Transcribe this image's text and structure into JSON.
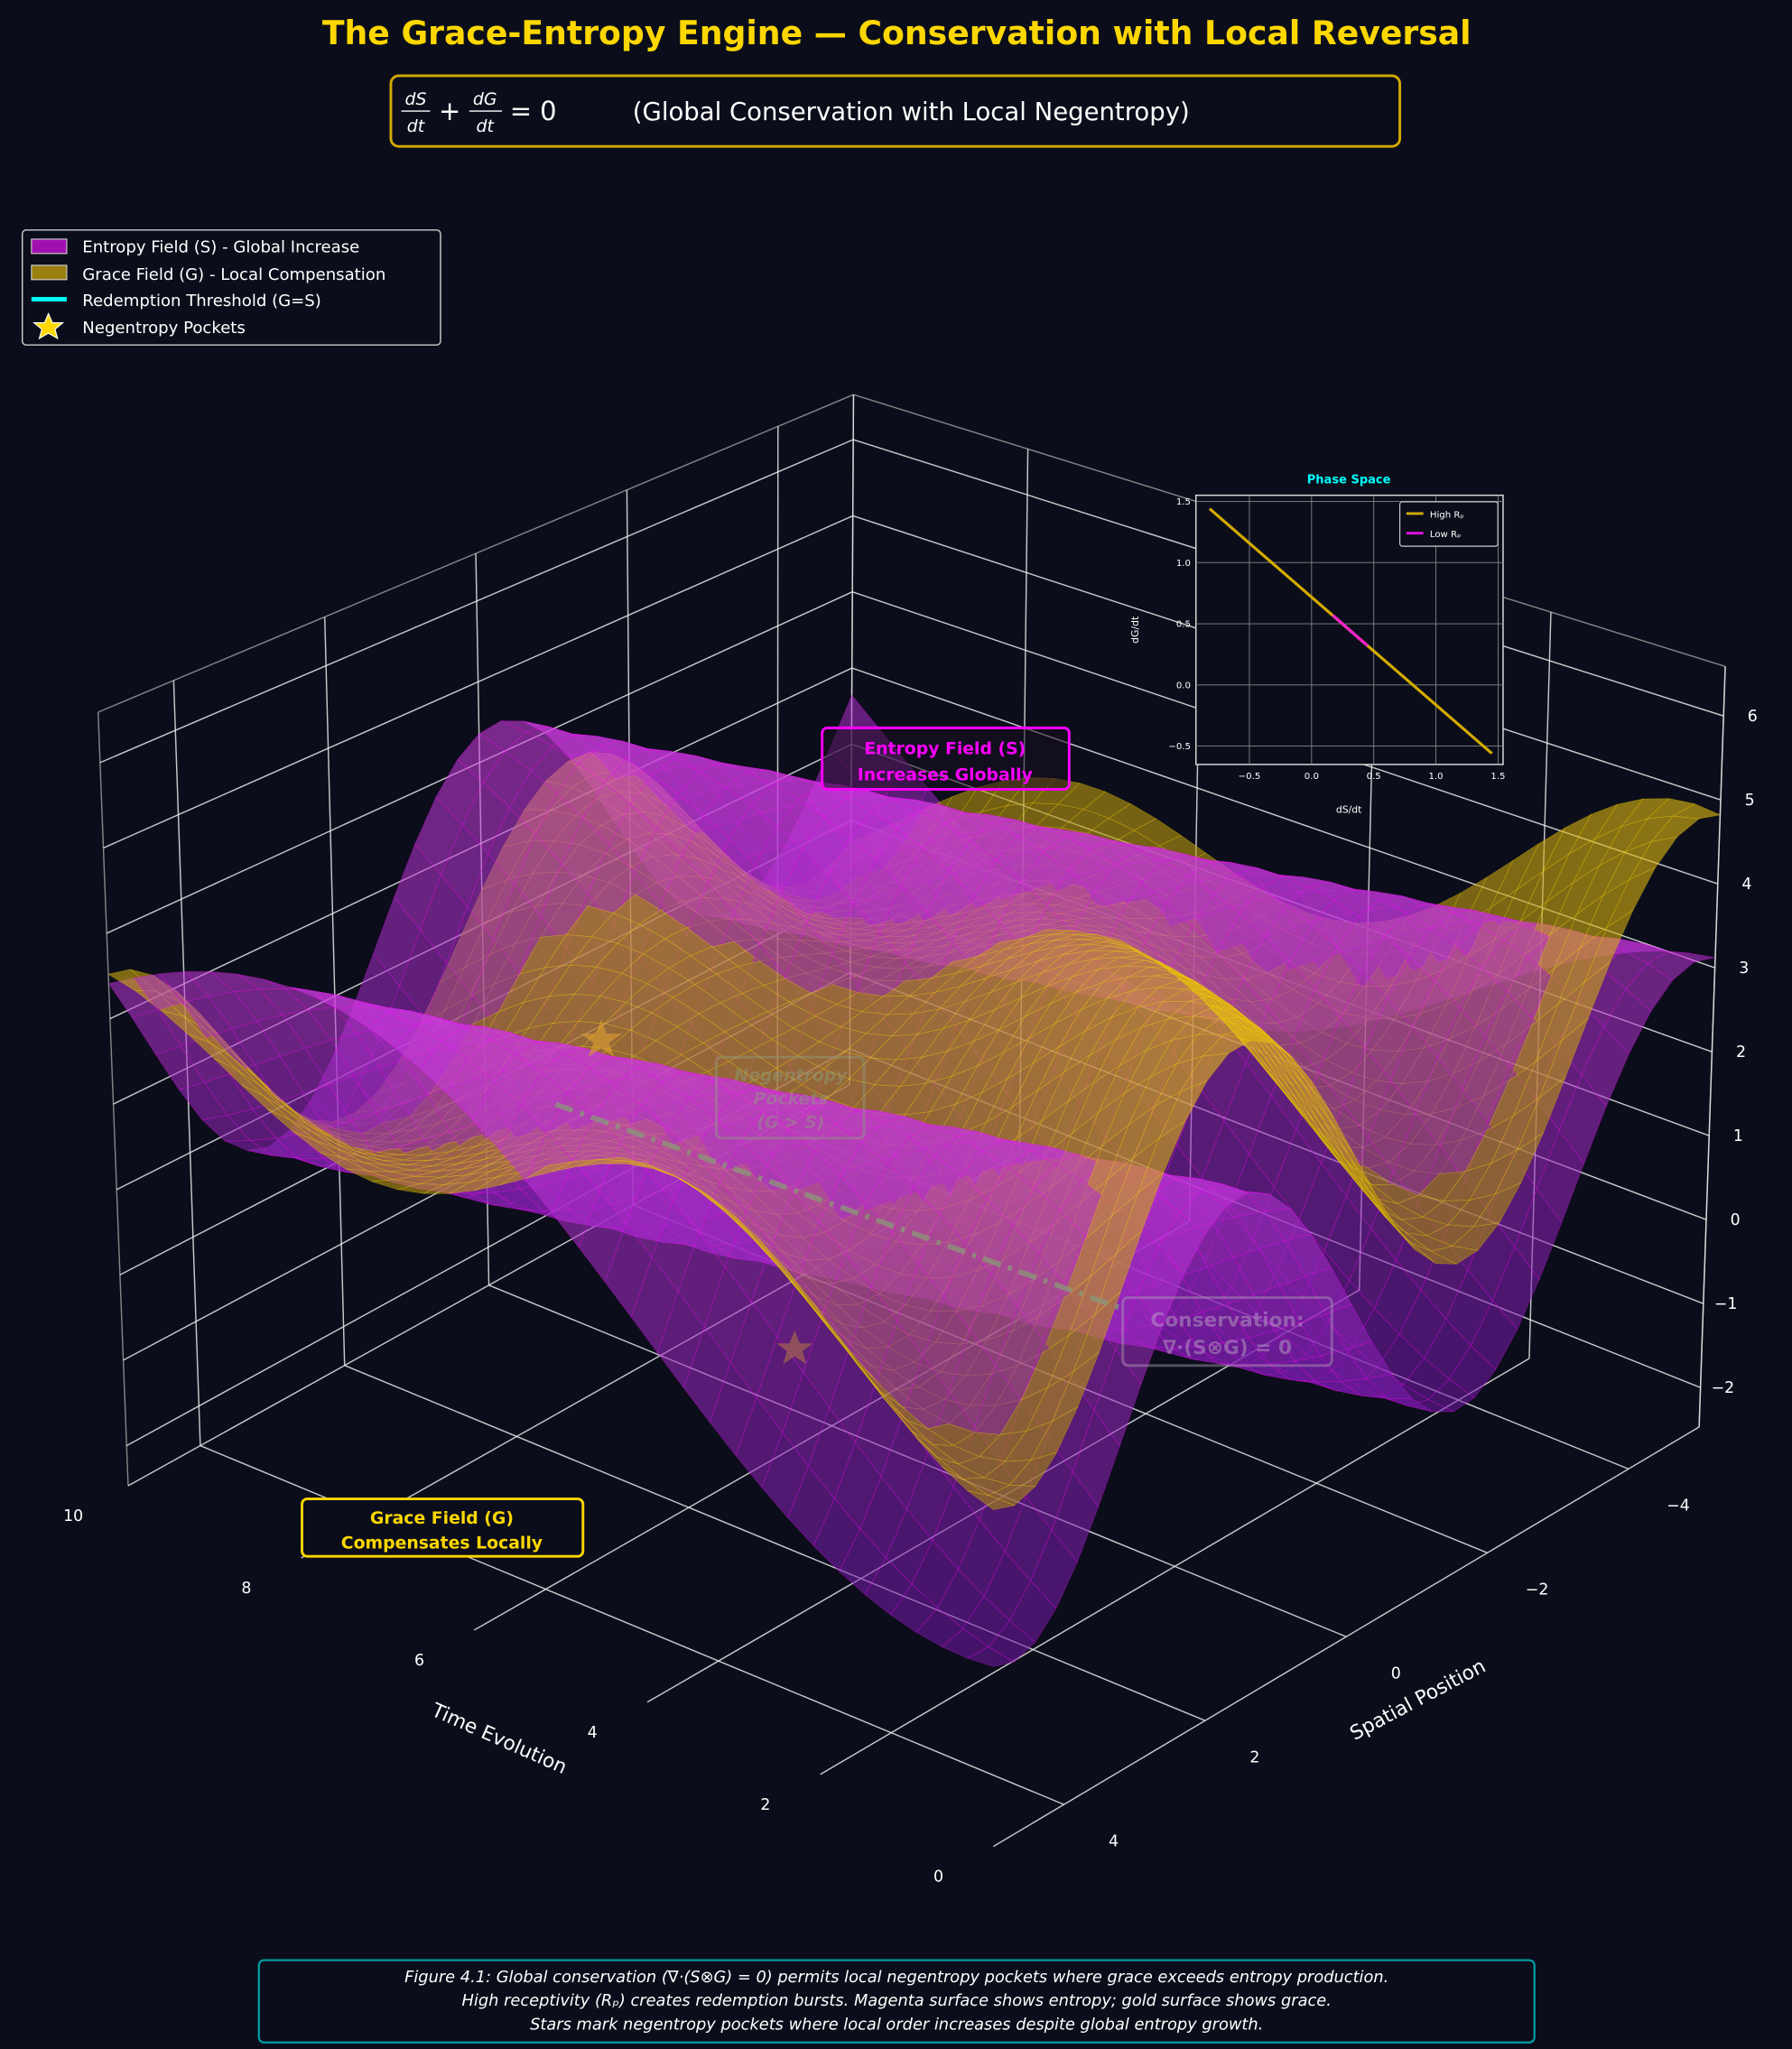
{
  "title": "The Grace-Entropy Engine — Conservation with Local Reversal",
  "equation": {
    "num1": "dS",
    "den1": "dt",
    "plus": "+",
    "num2": "dG",
    "den2": "dt",
    "equals": "= 0",
    "note": "(Global Conservation with Local Negentropy)"
  },
  "legend": {
    "items": [
      {
        "label": "Entropy Field (S) - Global Increase",
        "color": "#a010b0"
      },
      {
        "label": "Grace Field (G) - Local Compensation",
        "color": "#9a8010"
      },
      {
        "label": "Redemption Threshold (G=S)",
        "color": "#00ffff"
      },
      {
        "label": "Negentropy Pockets",
        "color": "#ffd700"
      }
    ]
  },
  "annotations": {
    "entropy": [
      "Entropy Field (S)",
      "Increases Globally"
    ],
    "grace": [
      "Grace Field (G)",
      "Compensates Locally"
    ],
    "negentropy": [
      "Negentropy",
      "Pockets",
      "(G > S)"
    ],
    "conservation": [
      "Conservation:",
      "∇·(S⊗G) = 0"
    ]
  },
  "caption": [
    "Figure 4.1: Global conservation (∇·(S⊗G) = 0) permits local negentropy pockets where grace exceeds entropy production.",
    "High receptivity (Rₚ) creates redemption bursts. Magenta surface shows entropy; gold surface shows grace.",
    "Stars mark negentropy pockets where local order increases despite global entropy growth."
  ],
  "chart_data": [
    {
      "type": "surface",
      "xlabel": "Time Evolution",
      "ylabel": "Spatial Position",
      "zlabel": "",
      "xlim": [
        0,
        10
      ],
      "ylim": [
        -5,
        5
      ],
      "zlim": [
        -2.47,
        6.59
      ],
      "x_ticks": [
        "0",
        "2",
        "4",
        "6",
        "8",
        "10"
      ],
      "y_ticks": [
        "4",
        "2",
        "0",
        "−2",
        "−4"
      ],
      "z_ticks": [
        "−2",
        "−1",
        "0",
        "1",
        "2",
        "3",
        "4",
        "5",
        "6"
      ],
      "grid": true,
      "series": [
        {
          "name": "Entropy Field (S) - Global Increase",
          "color": "#ff00ff"
        },
        {
          "name": "Grace Field (G) - Local Compensation",
          "color": "#ffd700"
        }
      ],
      "threshold_line": {
        "name": "Redemption Threshold (G=S)"
      },
      "markers": {
        "name": "Negentropy Pockets",
        "count": 2
      }
    },
    {
      "type": "line",
      "title": "Phase Space",
      "xlabel": "dS/dt",
      "ylabel": "dG/dt",
      "xlim": [
        -0.93,
        1.54
      ],
      "ylim": [
        -0.65,
        1.55
      ],
      "x_ticks": [
        "−0.5",
        "0.0",
        "0.5",
        "1.0",
        "1.5"
      ],
      "y_ticks": [
        "−0.5",
        "0.0",
        "0.5",
        "1.0",
        "1.5"
      ],
      "grid": true,
      "legend_position": "upper right",
      "series": [
        {
          "name": "High Rₚ",
          "color": "#d4aa00",
          "x": [
            -0.82,
            1.45
          ],
          "y": [
            1.44,
            -0.56
          ]
        },
        {
          "name": "Low Rₚ",
          "color": "#ff20d0",
          "x": [
            0.17,
            0.45
          ],
          "y": [
            0.57,
            0.32
          ]
        }
      ]
    }
  ]
}
